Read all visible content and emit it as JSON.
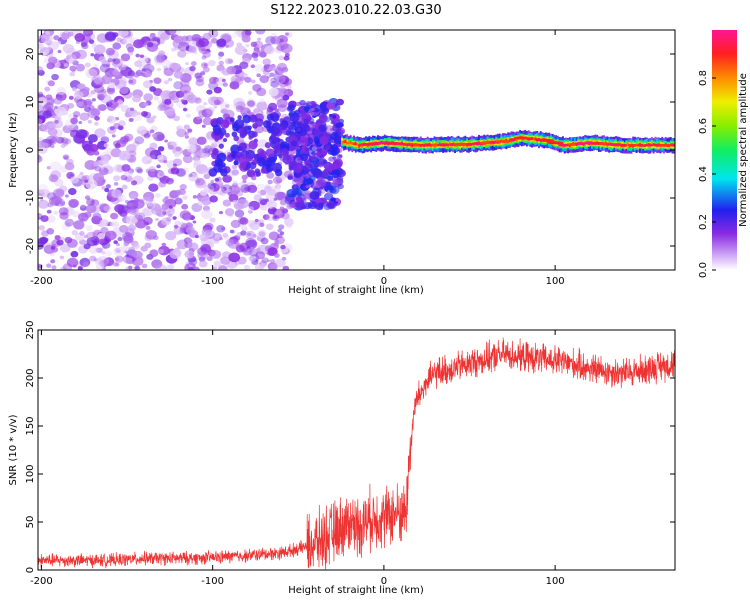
{
  "title": "S122.2023.010.22.03.G30",
  "chart_data": [
    {
      "type": "heatmap",
      "xlabel": "Height of straight line (km)",
      "ylabel": "Frequency (Hz)",
      "xlim": [
        -202,
        170
      ],
      "ylim": [
        -25,
        25
      ],
      "xticks": [
        -200,
        -100,
        0,
        100
      ],
      "yticks": [
        -20,
        -10,
        0,
        10,
        20
      ],
      "colorbar": {
        "label": "Normalized spectral amplitude",
        "range": [
          0.0,
          1.0
        ],
        "ticks": [
          "0.0",
          "0.2",
          "0.4",
          "0.6",
          "0.8"
        ],
        "tick_values": [
          0.0,
          0.2,
          0.4,
          0.6,
          0.8
        ]
      },
      "features": [
        {
          "description_region": "noise",
          "x_range": [
            -202,
            -55
          ],
          "freq_range": [
            -25,
            25
          ],
          "amplitude": 0.1
        },
        {
          "description_region": "transition",
          "x_range": [
            -55,
            -25
          ],
          "freq_range": [
            -12,
            10
          ],
          "amplitude": 0.2
        },
        {
          "description_region": "signal",
          "x_range": [
            -25,
            170
          ],
          "freq_center": 1.0,
          "amplitude": 0.9
        }
      ],
      "signal_ridge": [
        {
          "x": -28,
          "f": 2.0
        },
        {
          "x": -15,
          "f": 1.0
        },
        {
          "x": 0,
          "f": 1.5
        },
        {
          "x": 20,
          "f": 1.0
        },
        {
          "x": 50,
          "f": 1.2
        },
        {
          "x": 70,
          "f": 1.8
        },
        {
          "x": 80,
          "f": 2.5
        },
        {
          "x": 95,
          "f": 2.0
        },
        {
          "x": 105,
          "f": 1.0
        },
        {
          "x": 120,
          "f": 1.5
        },
        {
          "x": 140,
          "f": 1.0
        },
        {
          "x": 170,
          "f": 1.0
        }
      ]
    },
    {
      "type": "line",
      "xlabel": "Height of straight line (km)",
      "ylabel": "SNR (10 * v/v)",
      "xlim": [
        -202,
        170
      ],
      "ylim": [
        0,
        250
      ],
      "xticks": [
        -200,
        -100,
        0,
        100
      ],
      "yticks": [
        0,
        50,
        100,
        150,
        200,
        250
      ],
      "color": "#ee3333",
      "series": [
        {
          "name": "",
          "x": [
            -202,
            -180,
            -160,
            -140,
            -120,
            -100,
            -80,
            -60,
            -50,
            -40,
            -30,
            -25,
            -20,
            -15,
            -10,
            -5,
            0,
            5,
            10,
            13,
            15,
            18,
            20,
            25,
            30,
            40,
            50,
            60,
            70,
            80,
            90,
            100,
            110,
            120,
            130,
            140,
            150,
            160,
            170
          ],
          "y": [
            10,
            10,
            10,
            12,
            12,
            13,
            15,
            18,
            22,
            28,
            38,
            45,
            50,
            45,
            52,
            55,
            55,
            58,
            60,
            60,
            120,
            170,
            180,
            195,
            205,
            210,
            215,
            220,
            225,
            222,
            220,
            218,
            215,
            210,
            207,
            205,
            208,
            212,
            215
          ]
        }
      ]
    }
  ]
}
